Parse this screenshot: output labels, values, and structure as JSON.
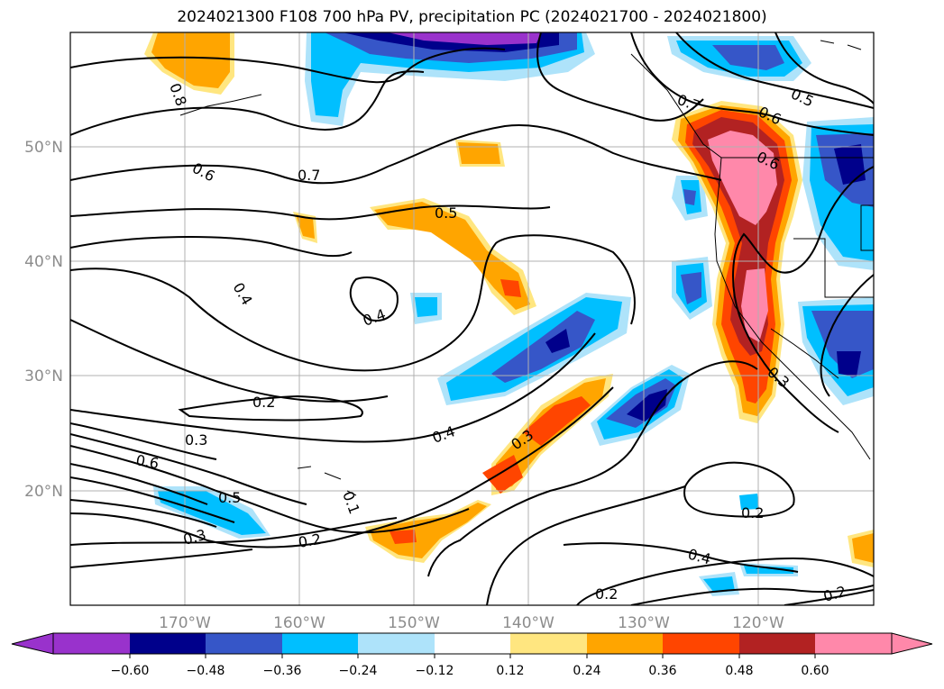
{
  "title": "2024021300 F108 700 hPa PV, precipitation PC (2024021700 - 2024021800)",
  "map": {
    "lon_labels": [
      "170°W",
      "160°W",
      "150°W",
      "140°W",
      "130°W",
      "120°W"
    ],
    "lat_labels": [
      "50°N",
      "40°N",
      "30°N",
      "20°N"
    ],
    "contour_labels": [
      {
        "id": "c1",
        "text": "0.8"
      },
      {
        "id": "c2",
        "text": "0.6"
      },
      {
        "id": "c3",
        "text": "0.7"
      },
      {
        "id": "c4",
        "text": "0.5"
      },
      {
        "id": "c5",
        "text": "0.4"
      },
      {
        "id": "c6",
        "text": "0.4"
      },
      {
        "id": "c7",
        "text": "0.7"
      },
      {
        "id": "c8",
        "text": "0.6"
      },
      {
        "id": "c9",
        "text": "0.5"
      },
      {
        "id": "c10",
        "text": "0.6"
      },
      {
        "id": "c11",
        "text": "0.2"
      },
      {
        "id": "c12",
        "text": "0.3"
      },
      {
        "id": "c13",
        "text": "0.6"
      },
      {
        "id": "c14",
        "text": "0.5"
      },
      {
        "id": "c15",
        "text": "0.3"
      },
      {
        "id": "c16",
        "text": "0.2"
      },
      {
        "id": "c17",
        "text": "0.4"
      },
      {
        "id": "c18",
        "text": "0.3"
      },
      {
        "id": "c19",
        "text": "0.3"
      },
      {
        "id": "c20",
        "text": "0.2"
      },
      {
        "id": "c21",
        "text": "0.4"
      },
      {
        "id": "c22",
        "text": "0.2"
      },
      {
        "id": "c23",
        "text": "0.2"
      },
      {
        "id": "c24",
        "text": "0.1"
      }
    ]
  },
  "colorbar": {
    "ticks": [
      "−0.60",
      "−0.48",
      "−0.36",
      "−0.24",
      "−0.12",
      "0.12",
      "0.24",
      "0.36",
      "0.48",
      "0.60"
    ],
    "colors": [
      "#9932cc",
      "#00008b",
      "#3656c8",
      "#00bfff",
      "#aee3fa",
      "#ffffff",
      "#ffe680",
      "#ffa500",
      "#ff4500",
      "#b22222",
      "#ff88aa"
    ]
  }
}
